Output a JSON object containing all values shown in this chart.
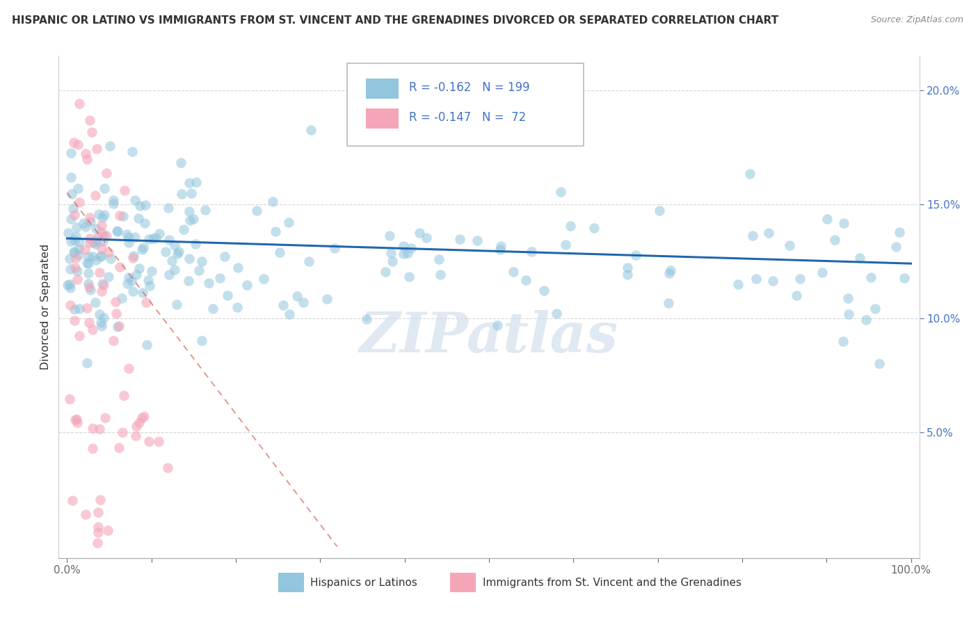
{
  "title": "HISPANIC OR LATINO VS IMMIGRANTS FROM ST. VINCENT AND THE GRENADINES DIVORCED OR SEPARATED CORRELATION CHART",
  "source": "Source: ZipAtlas.com",
  "ylabel": "Divorced or Separated",
  "xmin": 0.0,
  "xmax": 1.0,
  "ymin": 0.0,
  "ymax": 0.21,
  "blue_R": -0.162,
  "blue_N": 199,
  "pink_R": -0.147,
  "pink_N": 72,
  "blue_color": "#92c5de",
  "pink_color": "#f4a6b8",
  "blue_line_color": "#2166ac",
  "pink_line_color": "#d6604d",
  "legend_blue_label": "Hispanics or Latinos",
  "legend_pink_label": "Immigrants from St. Vincent and the Grenadines",
  "watermark": "ZIPatlas",
  "title_fontsize": 11,
  "source_fontsize": 9,
  "blue_line_start_x": 0.0,
  "blue_line_start_y": 0.135,
  "blue_line_end_x": 1.0,
  "blue_line_end_y": 0.124,
  "pink_line_start_x": 0.0,
  "pink_line_start_y": 0.155,
  "pink_line_end_x": 0.32,
  "pink_line_end_y": 0.0
}
